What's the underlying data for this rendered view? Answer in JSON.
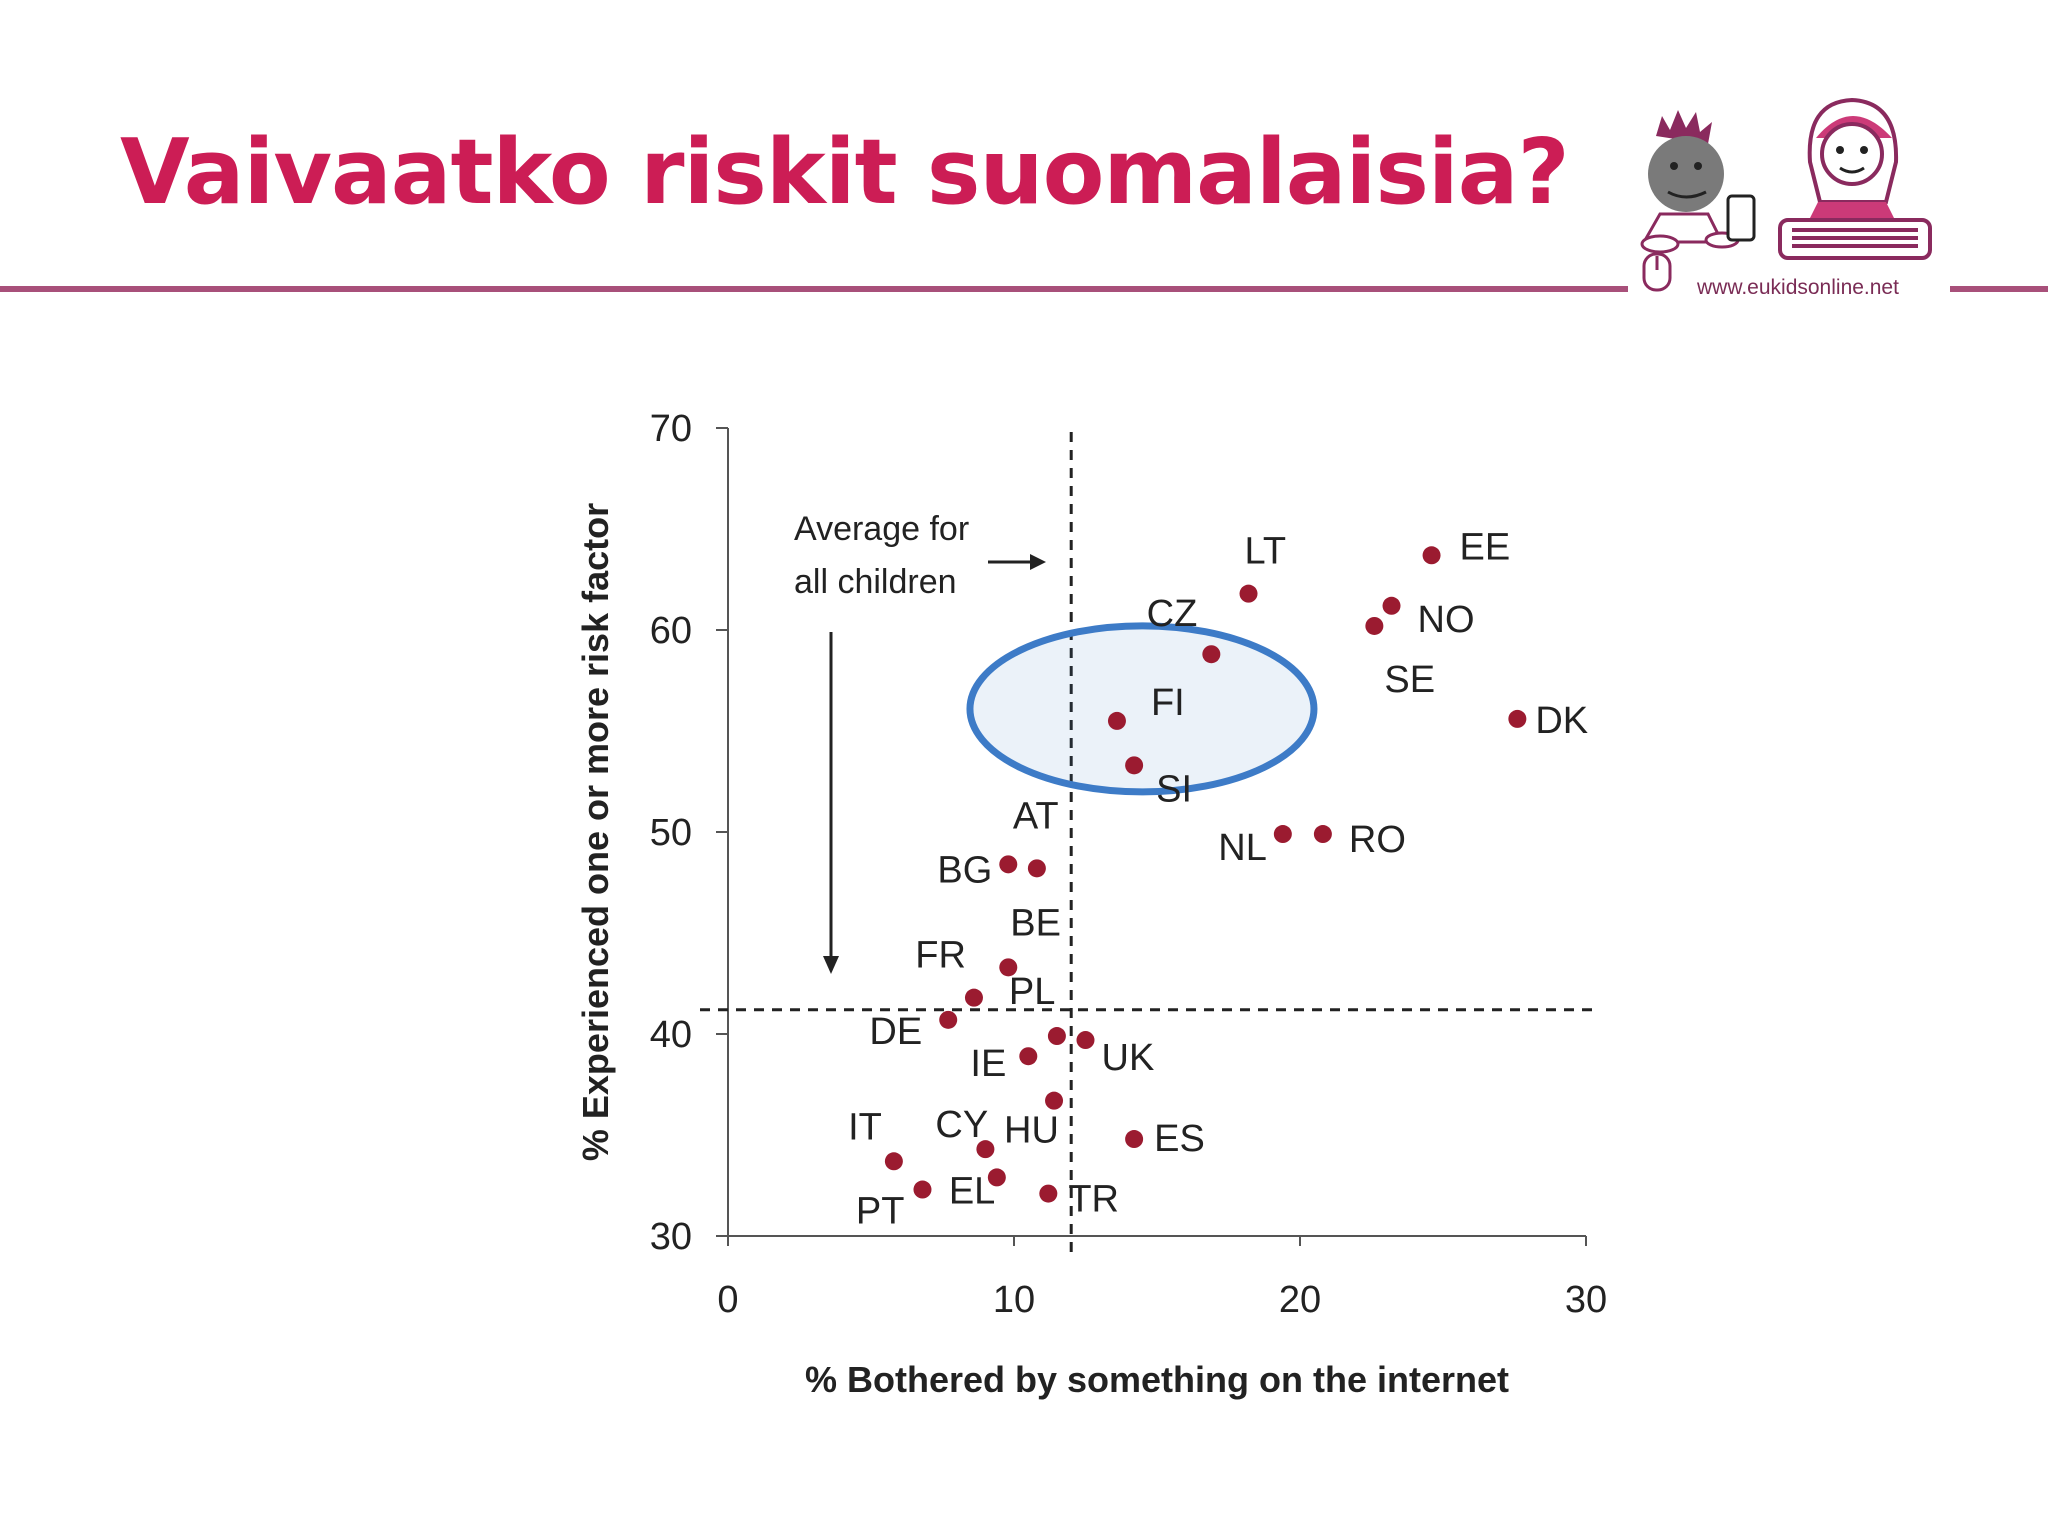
{
  "slide": {
    "title": "Vaivaatko riskit suomalaisia?",
    "logo_url": "www.eukidsonline.net",
    "accent_color": "#cc1d55",
    "rule_color": "#a8507a"
  },
  "chart_data": {
    "type": "scatter",
    "xlabel": "% Bothered by something on the internet",
    "ylabel": "% Experienced one or more risk factor",
    "xlim": [
      0,
      30
    ],
    "ylim": [
      30,
      70
    ],
    "xticks": [
      "0",
      "10",
      "20",
      "30"
    ],
    "yticks": [
      "30",
      "40",
      "50",
      "60",
      "70"
    ],
    "reference_lines": {
      "x": 12,
      "y": 41.2
    },
    "annotation": [
      "Average for",
      "all children"
    ],
    "highlight": "FI",
    "point_color": "#9b1b30",
    "highlight_color": "#3d7bc7",
    "points": [
      {
        "label": "LT",
        "x": 18.2,
        "y": 61.8
      },
      {
        "label": "EE",
        "x": 24.6,
        "y": 63.7
      },
      {
        "label": "NO",
        "x": 23.2,
        "y": 61.2
      },
      {
        "label": "SE",
        "x": 22.6,
        "y": 60.2
      },
      {
        "label": "CZ",
        "x": 16.9,
        "y": 58.8
      },
      {
        "label": "DK",
        "x": 27.6,
        "y": 55.6
      },
      {
        "label": "FI",
        "x": 13.6,
        "y": 55.5
      },
      {
        "label": "SI",
        "x": 14.2,
        "y": 53.3
      },
      {
        "label": "NL",
        "x": 19.4,
        "y": 49.9
      },
      {
        "label": "RO",
        "x": 20.8,
        "y": 49.9
      },
      {
        "label": "AT",
        "x": 10.8,
        "y": 48.2
      },
      {
        "label": "BG",
        "x": 9.8,
        "y": 48.4
      },
      {
        "label": "BE",
        "x": 9.8,
        "y": 43.3
      },
      {
        "label": "FR",
        "x": 8.6,
        "y": 41.8
      },
      {
        "label": "DE",
        "x": 7.7,
        "y": 40.7
      },
      {
        "label": "PL",
        "x": 11.5,
        "y": 39.9
      },
      {
        "label": "UK",
        "x": 12.5,
        "y": 39.7
      },
      {
        "label": "IE",
        "x": 10.5,
        "y": 38.9
      },
      {
        "label": "HU",
        "x": 11.4,
        "y": 36.7
      },
      {
        "label": "ES",
        "x": 14.2,
        "y": 34.8
      },
      {
        "label": "CY",
        "x": 9.0,
        "y": 34.3
      },
      {
        "label": "IT",
        "x": 5.8,
        "y": 33.7
      },
      {
        "label": "EL",
        "x": 9.4,
        "y": 32.9
      },
      {
        "label": "PT",
        "x": 6.8,
        "y": 32.3
      },
      {
        "label": "TR",
        "x": 11.2,
        "y": 32.1
      }
    ]
  }
}
